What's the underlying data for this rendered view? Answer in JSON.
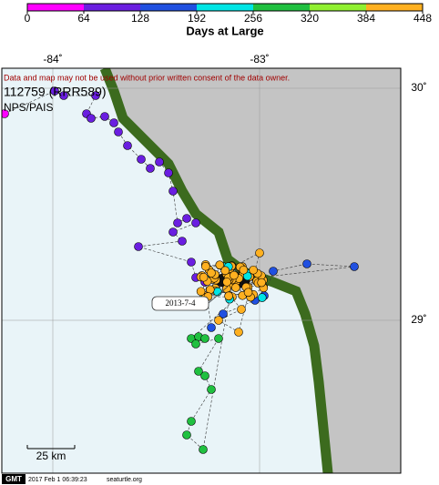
{
  "colorbar": {
    "ticks": [
      0,
      64,
      128,
      192,
      256,
      320,
      384,
      448
    ],
    "colors": [
      "#ff00ff",
      "#6a1ee0",
      "#2050e0",
      "#00e5e5",
      "#20c040",
      "#90f030",
      "#ffb020"
    ],
    "label": "Days at Large"
  },
  "map": {
    "lon_labels": [
      "-84˚",
      "-83˚"
    ],
    "lat_labels": [
      "30˚",
      "29˚"
    ],
    "disclaimer": "Data and map may not be used without prior written consent of the data owner.",
    "title": "112759 (RRR589)",
    "subtitle": "NPS/PAIS",
    "date_label": "2013-7-4",
    "scale_label": "25 km"
  },
  "footer": {
    "logo": "GMT",
    "timestamp": "2017 Feb  1 06:39:23",
    "site": "seaturtle.org"
  }
}
